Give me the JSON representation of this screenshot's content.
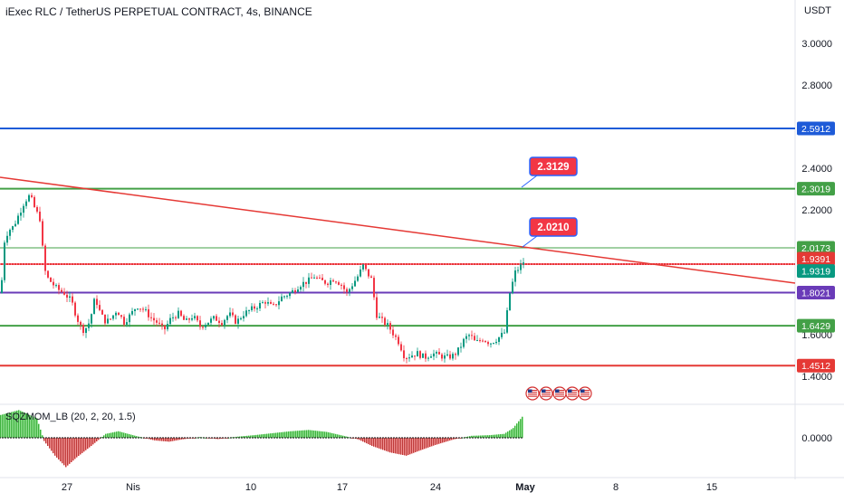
{
  "header": {
    "title": "iExec RLC / TetherUS PERPETUAL CONTRACT, 4s, BINANCE",
    "currency": "USDT"
  },
  "indicator": {
    "label": "SQZMOM_LB (20, 2, 20, 1.5)",
    "zero_label": "0.0000"
  },
  "colors": {
    "bull": "#089981",
    "bear": "#f23645",
    "green_line": "#43a047",
    "blue_line": "#1e5bd8",
    "red_line": "#e53935",
    "purple_line": "#6a3bb8",
    "trend_line": "#e53935",
    "mom_up": "#34c934",
    "mom_down": "#e03030"
  },
  "chart_data": {
    "type": "candlestick",
    "y_axis_ticks": [
      "3.0000",
      "2.8000",
      "2.4000",
      "2.2000",
      "1.6000",
      "1.4000"
    ],
    "x_axis_ticks": [
      "27",
      "Nis",
      "10",
      "17",
      "24",
      "May",
      "8",
      "15"
    ],
    "ylim": [
      1.33,
      3.16
    ],
    "horizontal_levels": [
      {
        "value": 2.5912,
        "label": "2.5912",
        "color": "#1e5bd8"
      },
      {
        "value": 2.3019,
        "label": "2.3019",
        "color": "#43a047"
      },
      {
        "value": 2.0173,
        "label": "2.0173",
        "color": "#43a047"
      },
      {
        "value": 1.9391,
        "label": "1.9391",
        "color": "#e53935"
      },
      {
        "value": 1.9319,
        "label": "1.9319",
        "color": "#089981"
      },
      {
        "value": 1.8021,
        "label": "1.8021",
        "color": "#6a3bb8"
      },
      {
        "value": 1.6429,
        "label": "1.6429",
        "color": "#43a047"
      },
      {
        "value": 1.4512,
        "label": "1.4512",
        "color": "#e53935"
      }
    ],
    "callouts": [
      {
        "text": "2.3129",
        "value": 2.3129
      },
      {
        "text": "2.0210",
        "value": 2.021
      }
    ],
    "price_path": [
      [
        0,
        1.8
      ],
      [
        4,
        2.05
      ],
      [
        8,
        2.1
      ],
      [
        14,
        2.12
      ],
      [
        20,
        2.18
      ],
      [
        26,
        2.24
      ],
      [
        32,
        2.27
      ],
      [
        38,
        2.2
      ],
      [
        44,
        2.15
      ],
      [
        47,
        1.95
      ],
      [
        50,
        1.88
      ],
      [
        56,
        1.85
      ],
      [
        62,
        1.82
      ],
      [
        70,
        1.8
      ],
      [
        78,
        1.76
      ],
      [
        84,
        1.68
      ],
      [
        90,
        1.62
      ],
      [
        96,
        1.64
      ],
      [
        100,
        1.7
      ],
      [
        104,
        1.78
      ],
      [
        110,
        1.7
      ],
      [
        116,
        1.66
      ],
      [
        122,
        1.68
      ],
      [
        128,
        1.72
      ],
      [
        136,
        1.66
      ],
      [
        144,
        1.7
      ],
      [
        150,
        1.74
      ],
      [
        158,
        1.72
      ],
      [
        166,
        1.68
      ],
      [
        172,
        1.66
      ],
      [
        180,
        1.62
      ],
      [
        188,
        1.68
      ],
      [
        196,
        1.7
      ],
      [
        204,
        1.66
      ],
      [
        212,
        1.69
      ],
      [
        220,
        1.64
      ],
      [
        228,
        1.66
      ],
      [
        236,
        1.68
      ],
      [
        244,
        1.66
      ],
      [
        252,
        1.7
      ],
      [
        260,
        1.66
      ],
      [
        268,
        1.7
      ],
      [
        276,
        1.72
      ],
      [
        284,
        1.74
      ],
      [
        292,
        1.76
      ],
      [
        300,
        1.73
      ],
      [
        310,
        1.78
      ],
      [
        320,
        1.8
      ],
      [
        330,
        1.84
      ],
      [
        340,
        1.86
      ],
      [
        346,
        1.88
      ],
      [
        352,
        1.86
      ],
      [
        360,
        1.85
      ],
      [
        368,
        1.87
      ],
      [
        376,
        1.84
      ],
      [
        382,
        1.8
      ],
      [
        388,
        1.84
      ],
      [
        394,
        1.88
      ],
      [
        400,
        1.93
      ],
      [
        404,
        1.9
      ],
      [
        410,
        1.86
      ],
      [
        414,
        1.7
      ],
      [
        420,
        1.67
      ],
      [
        428,
        1.64
      ],
      [
        434,
        1.6
      ],
      [
        440,
        1.56
      ],
      [
        446,
        1.49
      ],
      [
        452,
        1.5
      ],
      [
        460,
        1.51
      ],
      [
        468,
        1.49
      ],
      [
        476,
        1.51
      ],
      [
        484,
        1.5
      ],
      [
        492,
        1.49
      ],
      [
        500,
        1.5
      ],
      [
        506,
        1.53
      ],
      [
        512,
        1.58
      ],
      [
        518,
        1.6
      ],
      [
        524,
        1.56
      ],
      [
        532,
        1.58
      ],
      [
        540,
        1.56
      ],
      [
        548,
        1.58
      ],
      [
        556,
        1.61
      ],
      [
        562,
        1.8
      ],
      [
        568,
        1.9
      ],
      [
        574,
        1.93
      ],
      [
        577,
        1.95
      ]
    ],
    "momentum_path": [
      [
        0,
        0.7
      ],
      [
        20,
        0.85
      ],
      [
        40,
        0.6
      ],
      [
        48,
        -0.1
      ],
      [
        60,
        -0.55
      ],
      [
        72,
        -0.9
      ],
      [
        84,
        -0.6
      ],
      [
        100,
        -0.25
      ],
      [
        116,
        0.12
      ],
      [
        130,
        0.2
      ],
      [
        150,
        0.05
      ],
      [
        170,
        -0.08
      ],
      [
        186,
        -0.12
      ],
      [
        200,
        -0.05
      ],
      [
        220,
        0.02
      ],
      [
        240,
        -0.04
      ],
      [
        260,
        0.03
      ],
      [
        280,
        0.08
      ],
      [
        300,
        0.14
      ],
      [
        320,
        0.2
      ],
      [
        340,
        0.24
      ],
      [
        360,
        0.18
      ],
      [
        380,
        0.05
      ],
      [
        395,
        -0.05
      ],
      [
        410,
        -0.25
      ],
      [
        430,
        -0.45
      ],
      [
        448,
        -0.55
      ],
      [
        462,
        -0.4
      ],
      [
        480,
        -0.22
      ],
      [
        500,
        -0.05
      ],
      [
        520,
        0.06
      ],
      [
        540,
        0.08
      ],
      [
        556,
        0.12
      ],
      [
        566,
        0.3
      ],
      [
        577,
        0.68
      ]
    ],
    "momentum_ylim": [
      -1,
      1
    ]
  }
}
